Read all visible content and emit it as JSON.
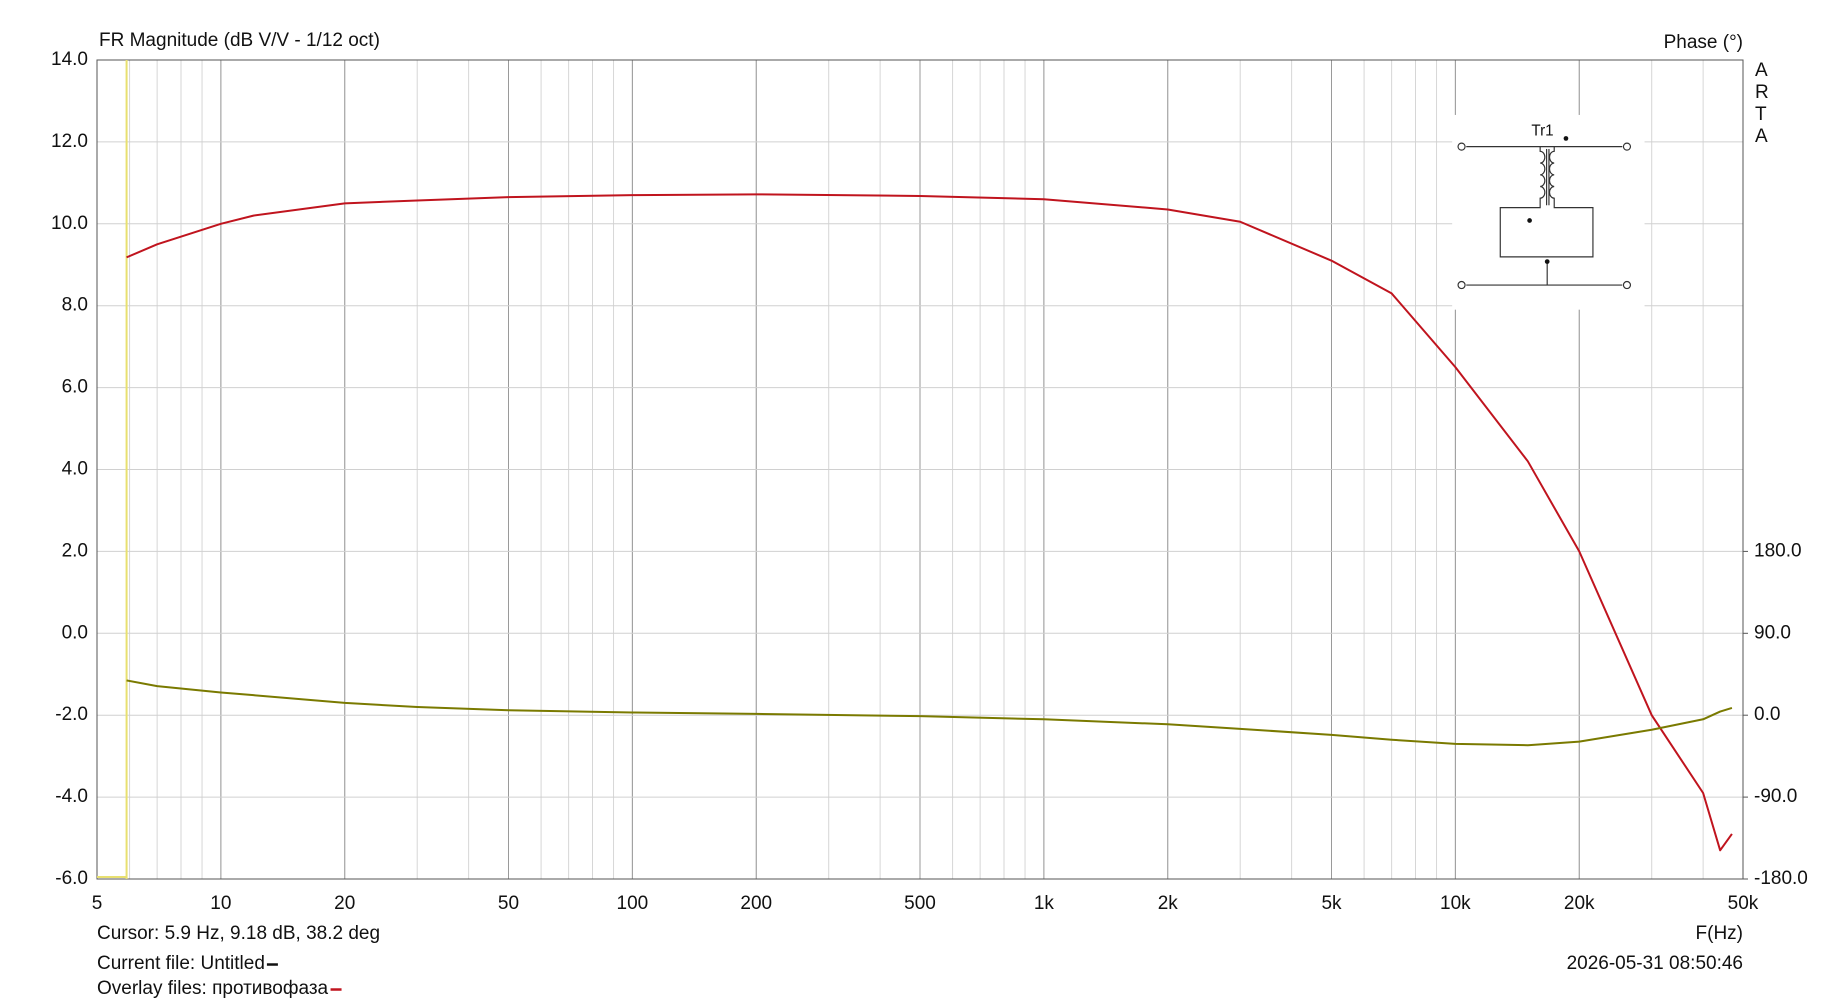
{
  "chart_data": {
    "type": "line",
    "title": "FR Magnitude (dB V/V - 1/12 oct)",
    "y2_label": "Phase (°)",
    "brand": [
      "A",
      "R",
      "T",
      "A"
    ],
    "x_label": "F(Hz)",
    "cursor_text": "Cursor: 5.9 Hz, 9.18 dB, 38.2 deg",
    "current_file": "Current file: Untitled",
    "overlay_files": "Overlay files: противофаза",
    "timestamp": "2026-05-31  08:50:46",
    "schematic_label": "Tr1",
    "x": [
      5.9,
      7,
      10,
      12,
      20,
      30,
      50,
      100,
      200,
      500,
      1000,
      2000,
      3000,
      5000,
      7000,
      10000,
      15000,
      20000,
      30000,
      40000,
      44000,
      47000
    ],
    "series": [
      {
        "color": "#c0141e",
        "values": [
          9.18,
          9.5,
          10.0,
          10.2,
          10.5,
          10.57,
          10.65,
          10.7,
          10.72,
          10.68,
          10.6,
          10.35,
          10.05,
          9.1,
          8.3,
          6.5,
          4.2,
          2.0,
          -2.0,
          -3.9,
          -5.3,
          -4.9
        ]
      },
      {
        "color": "#7a7a00",
        "axis": "y2",
        "values": [
          38.2,
          32,
          25,
          22,
          13.5,
          9,
          5.4,
          3,
          1.4,
          -1,
          -4.5,
          -10,
          -15,
          -21.6,
          -27,
          -31.5,
          -33,
          -29,
          -16,
          -4.5,
          4,
          8
        ]
      }
    ],
    "log_x": true,
    "grid": true,
    "cursor_color": "#e8e070",
    "xlim": [
      5,
      50000
    ],
    "xticks": [
      5,
      10,
      20,
      50,
      100,
      200,
      500,
      {
        "value": 1000,
        "label": "1k"
      },
      {
        "value": 2000,
        "label": "2k"
      },
      {
        "value": 5000,
        "label": "5k"
      },
      {
        "value": 10000,
        "label": "10k"
      },
      {
        "value": 20000,
        "label": "20k"
      },
      {
        "value": 50000,
        "label": "50k"
      }
    ],
    "ylim": [
      -6,
      14
    ],
    "yticks": [
      {
        "value": -6,
        "label": "-6.0"
      },
      {
        "value": -4,
        "label": "-4.0"
      },
      {
        "value": -2,
        "label": "-2.0"
      },
      {
        "value": 0,
        "label": "0.0"
      },
      {
        "value": 2,
        "label": "2.0"
      },
      {
        "value": 4,
        "label": "4.0"
      },
      {
        "value": 6,
        "label": "6.0"
      },
      {
        "value": 8,
        "label": "8.0"
      },
      {
        "value": 10,
        "label": "10.0"
      },
      {
        "value": 12,
        "label": "12.0"
      },
      {
        "value": 14,
        "label": "14.0"
      }
    ],
    "y2lim": [
      -180,
      720
    ],
    "y2ticks": [
      {
        "value": -180,
        "label": "-180.0"
      },
      {
        "value": -90,
        "label": "-90.0"
      },
      {
        "value": 0,
        "label": "0.0"
      },
      {
        "value": 90,
        "label": "90.0"
      },
      {
        "value": 180,
        "label": "180.0"
      }
    ]
  }
}
